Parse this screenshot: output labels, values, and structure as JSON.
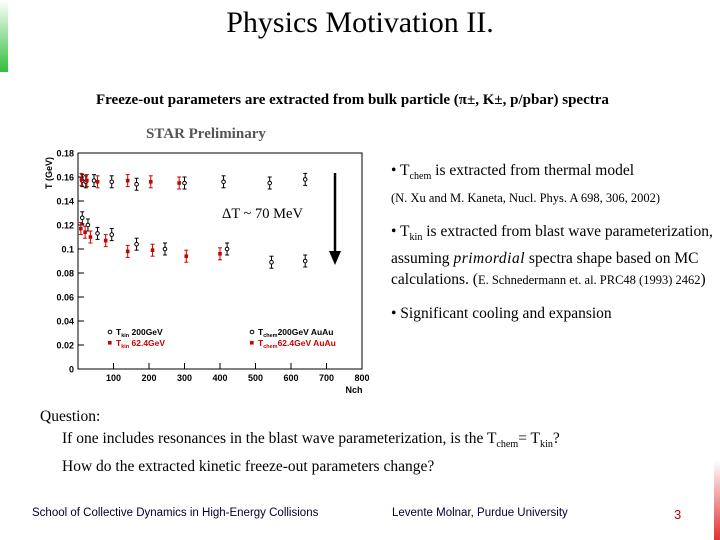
{
  "title": "Physics Motivation II.",
  "subtitle": "Freeze-out parameters are extracted from bulk particle (π±, K±, p/pbar) spectra",
  "star_label": "STAR Preliminary",
  "chart_data": {
    "type": "scatter",
    "ylabel": "T (GeV)",
    "xlabel": "Nch",
    "xlim": [
      0,
      800
    ],
    "ylim": [
      0,
      0.18
    ],
    "y_ticks": [
      "0",
      "0.02",
      "0.04",
      "0.06",
      "0.08",
      "0.1",
      "0.12",
      "0.14",
      "0.16",
      "0.18"
    ],
    "x_ticks": [
      "100",
      "200",
      "300",
      "400",
      "500",
      "600",
      "700",
      "800"
    ],
    "annotation": "ΔT ~ 70 MeV",
    "legend": [
      {
        "label": "T",
        "sub": "kin",
        "rest": " 200GeV",
        "color": "#000000"
      },
      {
        "label": "T",
        "sub": "kin",
        "rest": " 62.4GeV",
        "color": "#cc0000"
      },
      {
        "label": "T",
        "sub": "chem",
        "rest": "200GeV AuAu",
        "color": "#000000"
      },
      {
        "label": "T",
        "sub": "chem",
        "rest": "62.4GeV AuAu",
        "color": "#cc0000"
      }
    ],
    "series": [
      {
        "name": "Tchem 200GeV AuAu",
        "color": "#000000",
        "x": [
          12,
          22,
          45,
          95,
          165,
          300,
          410,
          540,
          640
        ],
        "y": [
          0.157,
          0.156,
          0.157,
          0.156,
          0.154,
          0.155,
          0.156,
          0.155,
          0.158
        ]
      },
      {
        "name": "Tchem 62.4GeV AuAu",
        "color": "#cc0000",
        "x": [
          10,
          25,
          55,
          140,
          205,
          285
        ],
        "y": [
          0.158,
          0.157,
          0.156,
          0.157,
          0.156,
          0.155
        ]
      },
      {
        "name": "Tkin 200GeV",
        "color": "#000000",
        "x": [
          12,
          28,
          55,
          95,
          165,
          245,
          420,
          545,
          640
        ],
        "y": [
          0.126,
          0.12,
          0.113,
          0.112,
          0.104,
          0.1,
          0.1,
          0.089,
          0.09
        ]
      },
      {
        "name": "Tkin 62.4GeV",
        "color": "#cc0000",
        "x": [
          8,
          20,
          35,
          78,
          140,
          210,
          305,
          400
        ],
        "y": [
          0.117,
          0.114,
          0.11,
          0.107,
          0.098,
          0.099,
          0.094,
          0.096
        ]
      }
    ]
  },
  "bullets": {
    "b1_pre": "• T",
    "b1_sub": "chem",
    "b1_post": " is extracted from thermal model",
    "b1_ref": "(N. Xu and M. Kaneta, Nucl. Phys. A 698, 306, 2002)",
    "b2_pre": "• T",
    "b2_sub": "kin",
    "b2_mid": " is extracted from blast wave parameterization, assuming ",
    "b2_it": "primordial",
    "b2_post": " spectra shape based on MC calculations. (",
    "b2_ref": "E. Schnedermann et. al. PRC48 (1993) 2462",
    "b2_close": ")",
    "b3": "• Significant cooling and expansion"
  },
  "question": {
    "label": "Question:",
    "l2_pre": "If one includes resonances in the blast wave parameterization, is the T",
    "l2_sub1": "chem",
    "l2_mid": "= T",
    "l2_sub2": "kin",
    "l2_end": "?",
    "l3": "How do the extracted kinetic freeze-out parameters change?"
  },
  "footer": {
    "left": "School of Collective Dynamics in High-Energy Collisions",
    "center": "Levente Molnar, Purdue University",
    "page": "3"
  }
}
